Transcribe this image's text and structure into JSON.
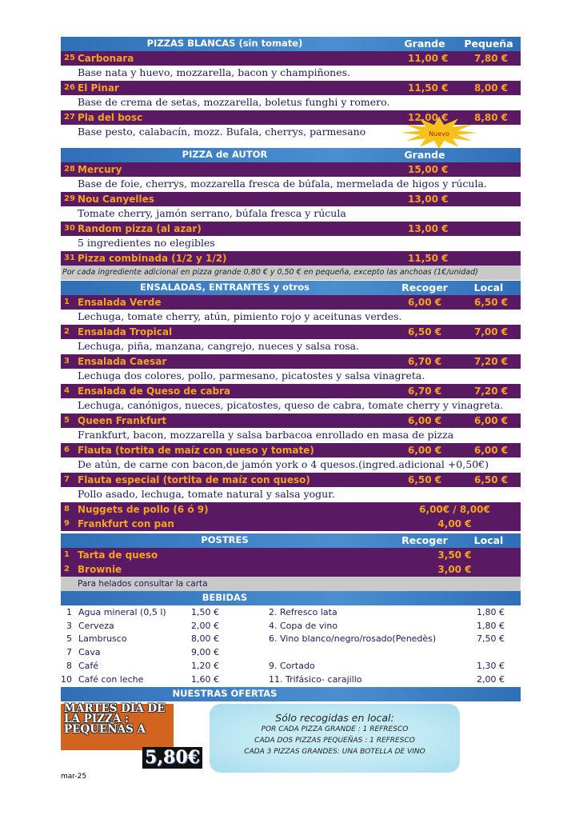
{
  "sections": [
    {
      "header": {
        "title": "PIZZAS BLANCAS (sin tomate)",
        "col1": "Grande",
        "col2": "Pequeña"
      },
      "items": [
        {
          "number": "25",
          "name": "Carbonara",
          "price1": "11,00 €",
          "price2": "7,80 €",
          "description": "Base nata y huevo, mozzarella, bacon y champiñones."
        },
        {
          "number": "26",
          "name": "El Pinar",
          "price1": "11,50 €",
          "price2": "8,00 €",
          "description": "Base de crema de setas, mozzarella, boletus funghi y romero."
        },
        {
          "number": "27",
          "name": "Pla del bosc",
          "price1": "12,00 €",
          "price2": "8,80 €",
          "description": "Base pesto, calabacín, mozz. Bufala, cherrys, parmesano",
          "badge": "Nuevo"
        }
      ]
    },
    {
      "header": {
        "title": "PIZZA de AUTOR",
        "col1": "Grande"
      },
      "items": [
        {
          "number": "28",
          "name": "Mercury",
          "price1": "15,00 €",
          "description": "Base de foie, cherrys, mozzarella fresca de búfala, mermelada de higos y rúcula."
        },
        {
          "number": "29",
          "name": "Nou Canyelles",
          "price1": "13,00 €",
          "description": "Tomate cherry, jamón serrano, búfala fresca y rúcula"
        },
        {
          "number": "30",
          "name": "Random pizza (al azar)",
          "price1": "13,00 €",
          "description": "5 ingredientes no elegibles"
        },
        {
          "number": "31",
          "name": "Pizza combinada (1/2 y 1/2)",
          "price1": "11,50 €"
        }
      ],
      "note": "Por cada ingrediente adicional en pizza grande 0,80 € y 0,50 € en pequeña, excepto las anchoas (1€/unidad)"
    },
    {
      "header": {
        "title": "ENSALADAS,  ENTRANTES y otros",
        "col1": "Recoger",
        "col2": "Local"
      },
      "items": [
        {
          "number": "1",
          "name": "Ensalada Verde",
          "price1": "6,00 €",
          "price2": "6,50 €",
          "description": "Lechuga, tomate cherry, atún, pimiento rojo y aceitunas verdes."
        },
        {
          "number": "2",
          "name": "Ensalada Tropical",
          "price1": "6,50 €",
          "price2": "7,00 €",
          "description": "Lechuga, piña, manzana, cangrejo, nueces y salsa rosa."
        },
        {
          "number": "3",
          "name": "Ensalada Caesar",
          "price1": "6,70 €",
          "price2": "7,20 €",
          "description": "Lechuga dos colores, pollo, parmesano, picatostes y salsa vinagreta."
        },
        {
          "number": "4",
          "name": "Ensalada de Queso de cabra",
          "price1": "6,70 €",
          "price2": "7,20 €",
          "description": "Lechuga, canónigos, nueces, picatostes, queso de cabra, tomate cherry y  vinagreta."
        },
        {
          "number": "5",
          "name": "Queen Frankfurt",
          "price1": "6,00 €",
          "price2": "6,00 €",
          "description": "Frankfurt, bacon, mozzarella y salsa barbacoa enrollado en masa de pizza"
        },
        {
          "number": "6",
          "name": "Flauta (tortita de maíz con queso y tomate)",
          "price1": "6,00 €",
          "price2": "6,00 €",
          "description": "De atún, de carne con bacon,de jamón york o  4 quesos.(ingred.adicional +0,50€)"
        },
        {
          "number": "7",
          "name": "Flauta especial (tortita de maíz con queso)",
          "price1": "6,50 €",
          "price2": "6,50 €",
          "description": "Pollo asado, lechuga, tomate natural y salsa yogur."
        },
        {
          "number": "8",
          "name": "Nuggets de pollo (6 ó 9)",
          "price": "6,00€ / 8,00€"
        },
        {
          "number": "9",
          "name": "Frankfurt con pan",
          "price": "4,00 €"
        }
      ]
    },
    {
      "header": {
        "title": "POSTRES",
        "col1": "Recoger",
        "col2": "Local"
      },
      "items": [
        {
          "number": "1",
          "name": "Tarta de queso",
          "price": "3,50 €"
        },
        {
          "number": "2",
          "name": "Brownie",
          "price": "3,00 €"
        }
      ],
      "note": "Para helados consultar la carta"
    }
  ],
  "bebidas": {
    "title": "BEBIDAS",
    "rows": [
      [
        {
          "number": "1",
          "name": "Agua mineral (0,5 l)",
          "price": "1,50 €"
        },
        {
          "name": "2. Refresco lata",
          "price": "1,80 €"
        }
      ],
      [
        {
          "number": "3",
          "name": "Cerveza",
          "price": "2,00 €"
        },
        {
          "name": "4. Copa de vino",
          "price": "1,80 €"
        }
      ],
      [
        {
          "number": "5",
          "name": "Lambrusco",
          "price": "8,00 €"
        },
        {
          "name": "6. Vino blanco/negro/rosado(Penedès)",
          "price": "7,50 €"
        }
      ],
      [
        {
          "number": "7",
          "name": "Cava",
          "price": "9,00 €"
        }
      ],
      [
        {
          "number": "8",
          "name": "Café",
          "price": "1,20 €"
        },
        {
          "name": "9. Cortado",
          "price": "1,30 €"
        }
      ],
      [
        {
          "number": "10",
          "name": "Café con leche",
          "price": "1,60 €"
        },
        {
          "name": "11. Trifásico- carajillo",
          "price": "2,00 €"
        }
      ]
    ]
  },
  "ofertas": {
    "title": "NUESTRAS OFERTAS",
    "promo": "MARTES DIA DE LA PIZZA : PEQUEÑAS A",
    "promo_price": "5,80€",
    "box_title": "Sólo recogidas en local:",
    "box_lines": [
      "POR CADA PIZZA GRANDE : 1 REFRESCO",
      "CADA DOS PIZZAS PEQUEÑAS : 1 REFRESCO",
      "CADA 3 PIZZAS GRANDES: UNA BOTELLA  DE VINO"
    ]
  },
  "footer": "mar-25"
}
